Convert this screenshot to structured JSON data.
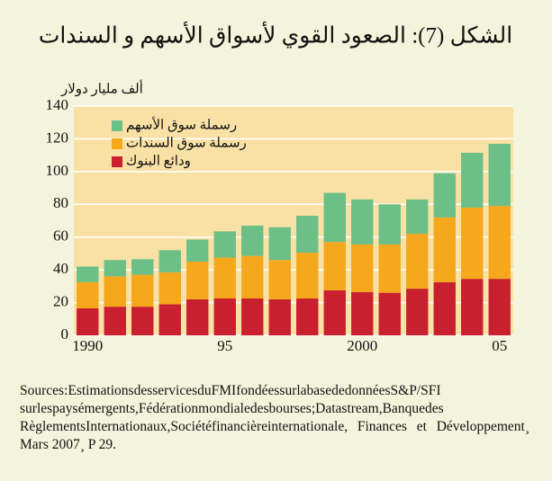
{
  "chart_data": {
    "type": "stacked_bar",
    "title": "الشكل (7): الصعود القوي لأسواق الأسهم و السندات",
    "y_label": "ألف مليار دولار",
    "categories": [
      "1990",
      null,
      null,
      null,
      null,
      "95",
      null,
      null,
      null,
      null,
      "2000",
      null,
      null,
      null,
      null,
      "05"
    ],
    "series": [
      {
        "name": "ودائع البنوك",
        "color": "#c8202e",
        "values": [
          16.5,
          17.5,
          17.5,
          19,
          22,
          22.5,
          22.5,
          22,
          22.5,
          27.5,
          26.5,
          26,
          28.5,
          32.5,
          34.5,
          34.5
        ]
      },
      {
        "name": "رسملة سوق السندات",
        "color": "#f5a81c",
        "values": [
          16,
          18.5,
          19.5,
          19.5,
          23,
          25,
          26,
          24,
          28,
          29.5,
          29,
          29.5,
          33.5,
          39.5,
          43.5,
          44.5
        ]
      },
      {
        "name": "رسملة سوق الأسهم",
        "color": "#6cbf86",
        "values": [
          9.5,
          10,
          9.5,
          13.5,
          13.5,
          16,
          18.5,
          20,
          22.5,
          30,
          27.5,
          24.5,
          21,
          27,
          33.5,
          38
        ]
      }
    ],
    "ylim": [
      0,
      140
    ],
    "yticks": [
      0,
      20,
      40,
      60,
      80,
      100,
      120,
      140
    ],
    "grid": true,
    "source": "Sources:EstimationsdesservicesduFMIfondéessurlabasededonnéesS&P/SFI surlespaysémergents,Fédérationmondialedesbourses;Datastream,Banquedes RèglementsInternationaux,Sociétéfinancièreinternationale, Finances et Développement¸ Mars 2007¸ P 29."
  }
}
